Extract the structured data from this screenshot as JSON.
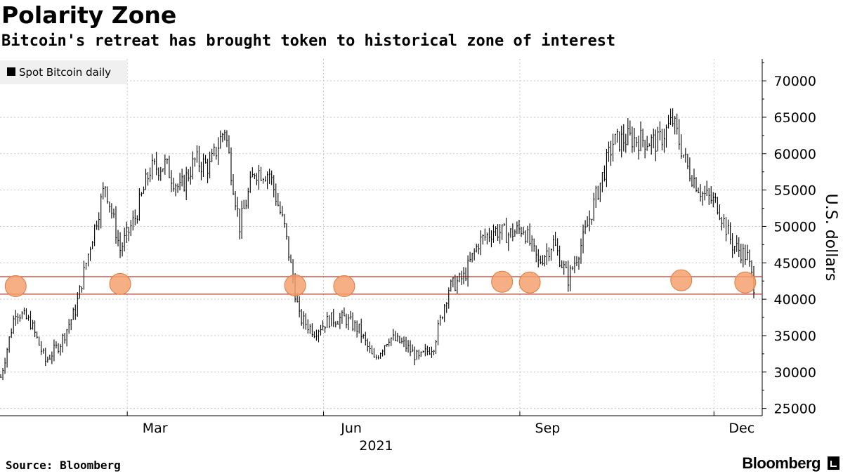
{
  "chart_data": {
    "type": "line",
    "style": "daily-range-bars",
    "title": "Polarity Zone",
    "subtitle": "Bitcoin's retreat has brought token to historical zone of interest",
    "legend": [
      {
        "name": "Spot Bitcoin daily",
        "color": "#000000"
      }
    ],
    "legend_position": "top-left",
    "ylabel": "U.S. dollars",
    "ylim": [
      24000,
      73000
    ],
    "y_ticks": [
      25000,
      30000,
      35000,
      40000,
      45000,
      50000,
      55000,
      60000,
      65000,
      70000
    ],
    "x_ticks": [
      "Mar",
      "Jun",
      "Sep",
      "Dec"
    ],
    "x_year_label": "2021",
    "x_range": [
      "2021-01-01",
      "2021-12-20"
    ],
    "grid": true,
    "zone": {
      "low": 40700,
      "high": 43100,
      "line_color": "#c0392b"
    },
    "markers": [
      {
        "date": "2021-01-08",
        "value": 41800
      },
      {
        "date": "2021-02-26",
        "value": 42100
      },
      {
        "date": "2021-05-19",
        "value": 41900
      },
      {
        "date": "2021-06-11",
        "value": 41800
      },
      {
        "date": "2021-08-24",
        "value": 42400
      },
      {
        "date": "2021-09-06",
        "value": 42300
      },
      {
        "date": "2021-11-16",
        "value": 42600
      },
      {
        "date": "2021-12-16",
        "value": 42300
      }
    ],
    "marker_color": "#f5a06e",
    "series": [
      {
        "name": "Spot Bitcoin daily",
        "x": [
          "2021-01-01",
          "2021-01-08",
          "2021-01-15",
          "2021-01-22",
          "2021-01-29",
          "2021-02-05",
          "2021-02-12",
          "2021-02-19",
          "2021-02-26",
          "2021-03-05",
          "2021-03-12",
          "2021-03-19",
          "2021-03-26",
          "2021-04-02",
          "2021-04-09",
          "2021-04-16",
          "2021-04-23",
          "2021-04-30",
          "2021-05-07",
          "2021-05-14",
          "2021-05-21",
          "2021-05-28",
          "2021-06-04",
          "2021-06-11",
          "2021-06-18",
          "2021-06-25",
          "2021-07-02",
          "2021-07-09",
          "2021-07-16",
          "2021-07-23",
          "2021-07-30",
          "2021-08-06",
          "2021-08-13",
          "2021-08-20",
          "2021-08-27",
          "2021-09-03",
          "2021-09-10",
          "2021-09-17",
          "2021-09-24",
          "2021-10-01",
          "2021-10-08",
          "2021-10-15",
          "2021-10-22",
          "2021-10-29",
          "2021-11-05",
          "2021-11-12",
          "2021-11-19",
          "2021-11-26",
          "2021-12-03",
          "2021-12-10",
          "2021-12-17",
          "2021-12-20"
        ],
        "values": [
          29300,
          38500,
          36800,
          31500,
          34000,
          38500,
          47500,
          55800,
          46800,
          51200,
          57800,
          58500,
          55000,
          59000,
          58200,
          63500,
          50100,
          57700,
          57300,
          49800,
          37500,
          35600,
          37200,
          37400,
          35800,
          31600,
          34800,
          33800,
          31800,
          33700,
          41500,
          43000,
          47800,
          49500,
          48900,
          49800,
          45000,
          47800,
          42800,
          48200,
          55000,
          61500,
          62100,
          61900,
          61500,
          64500,
          58000,
          54500,
          53000,
          47500,
          45800,
          41900
        ]
      }
    ]
  },
  "footer": {
    "source": "Source: Bloomberg",
    "brand": "Bloomberg"
  }
}
